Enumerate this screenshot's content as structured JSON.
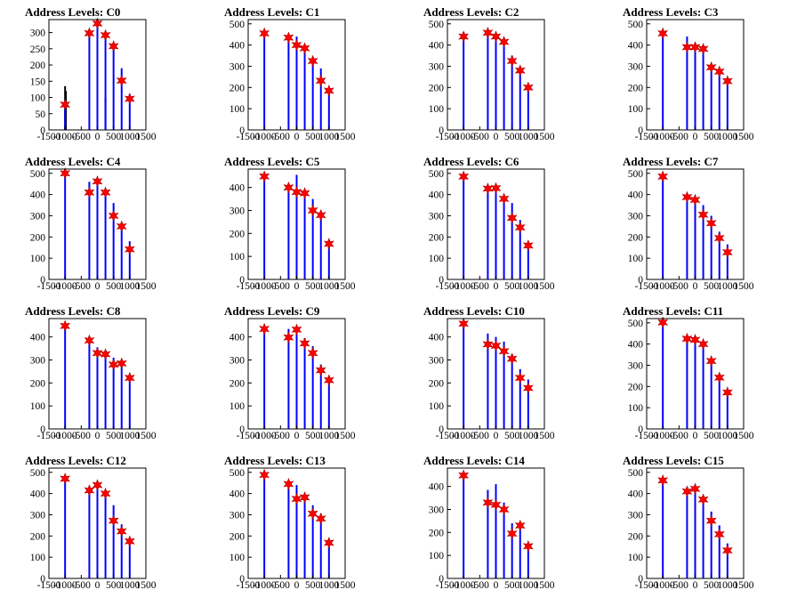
{
  "figure": {
    "x_ticks": [
      "-1500",
      "-1000",
      "-500",
      "0",
      "500",
      "1000",
      "1500"
    ],
    "x_tick_values": [
      -1500,
      -1000,
      -500,
      0,
      500,
      1000,
      1500
    ],
    "colors": {
      "bar": "#0000ff",
      "tall_bar": "#000000",
      "marker_fill": "#ff0000",
      "marker_stroke": "#aa0000",
      "frame": "#000000"
    }
  },
  "chart_data": [
    {
      "title": "Address Levels: C0",
      "type": "bar",
      "xlim": [
        -1500,
        1500
      ],
      "ylim": [
        0,
        340
      ],
      "y_ticks": [
        0,
        50,
        100,
        150,
        200,
        250,
        300
      ],
      "bars": [
        {
          "x": -1000,
          "y": 135,
          "dark": true
        },
        {
          "x": -975,
          "y": 120,
          "dark": true
        },
        {
          "x": -1000,
          "y": 75
        },
        {
          "x": -250,
          "y": 300
        },
        {
          "x": 0,
          "y": 325
        },
        {
          "x": 250,
          "y": 295
        },
        {
          "x": 250,
          "y": 100
        },
        {
          "x": 500,
          "y": 258
        },
        {
          "x": 750,
          "y": 190
        },
        {
          "x": 1000,
          "y": 110
        }
      ],
      "markers": [
        {
          "x": -1000,
          "y": 78
        },
        {
          "x": -250,
          "y": 298
        },
        {
          "x": 0,
          "y": 328
        },
        {
          "x": 250,
          "y": 292
        },
        {
          "x": 500,
          "y": 258
        },
        {
          "x": 750,
          "y": 152
        },
        {
          "x": 1000,
          "y": 96
        }
      ]
    },
    {
      "title": "Address Levels: C1",
      "type": "bar",
      "xlim": [
        -1500,
        1500
      ],
      "ylim": [
        0,
        520
      ],
      "y_ticks": [
        0,
        100,
        200,
        300,
        400,
        500
      ],
      "bars": [
        {
          "x": -1000,
          "y": 465
        },
        {
          "x": -250,
          "y": 440
        },
        {
          "x": 0,
          "y": 440
        },
        {
          "x": 250,
          "y": 400
        },
        {
          "x": 500,
          "y": 340
        },
        {
          "x": 750,
          "y": 290
        },
        {
          "x": 1000,
          "y": 200
        }
      ],
      "markers": [
        {
          "x": -1000,
          "y": 455
        },
        {
          "x": -250,
          "y": 435
        },
        {
          "x": 0,
          "y": 400
        },
        {
          "x": 250,
          "y": 385
        },
        {
          "x": 500,
          "y": 325
        },
        {
          "x": 750,
          "y": 232
        },
        {
          "x": 1000,
          "y": 185
        }
      ]
    },
    {
      "title": "Address Levels: C2",
      "type": "bar",
      "xlim": [
        -1500,
        1500
      ],
      "ylim": [
        0,
        520
      ],
      "y_ticks": [
        0,
        100,
        200,
        300,
        400,
        500
      ],
      "bars": [
        {
          "x": -1000,
          "y": 460
        },
        {
          "x": -250,
          "y": 460
        },
        {
          "x": 0,
          "y": 450
        },
        {
          "x": 250,
          "y": 420
        },
        {
          "x": 500,
          "y": 350
        },
        {
          "x": 750,
          "y": 300
        },
        {
          "x": 1000,
          "y": 200
        }
      ],
      "markers": [
        {
          "x": -1000,
          "y": 440
        },
        {
          "x": -250,
          "y": 458
        },
        {
          "x": 0,
          "y": 440
        },
        {
          "x": 250,
          "y": 415
        },
        {
          "x": 500,
          "y": 325
        },
        {
          "x": 750,
          "y": 280
        },
        {
          "x": 1000,
          "y": 200
        }
      ]
    },
    {
      "title": "Address Levels: C3",
      "type": "bar",
      "xlim": [
        -1500,
        1500
      ],
      "ylim": [
        0,
        520
      ],
      "y_ticks": [
        0,
        100,
        200,
        300,
        400,
        500
      ],
      "bars": [
        {
          "x": -1000,
          "y": 465
        },
        {
          "x": -250,
          "y": 440
        },
        {
          "x": 0,
          "y": 400
        },
        {
          "x": 250,
          "y": 390
        },
        {
          "x": 500,
          "y": 310
        },
        {
          "x": 750,
          "y": 290
        },
        {
          "x": 1000,
          "y": 240
        }
      ],
      "markers": [
        {
          "x": -1000,
          "y": 455
        },
        {
          "x": -250,
          "y": 390
        },
        {
          "x": 0,
          "y": 390
        },
        {
          "x": 250,
          "y": 382
        },
        {
          "x": 500,
          "y": 295
        },
        {
          "x": 750,
          "y": 275
        },
        {
          "x": 1000,
          "y": 230
        }
      ]
    },
    {
      "title": "Address Levels: C4",
      "type": "bar",
      "xlim": [
        -1500,
        1500
      ],
      "ylim": [
        0,
        520
      ],
      "y_ticks": [
        0,
        100,
        200,
        300,
        400,
        500
      ],
      "bars": [
        {
          "x": -1000,
          "y": 500
        },
        {
          "x": -250,
          "y": 460
        },
        {
          "x": 0,
          "y": 470
        },
        {
          "x": 250,
          "y": 420
        },
        {
          "x": 500,
          "y": 360
        },
        {
          "x": 750,
          "y": 260
        },
        {
          "x": 1000,
          "y": 180
        }
      ],
      "markers": [
        {
          "x": -1000,
          "y": 500
        },
        {
          "x": -250,
          "y": 410
        },
        {
          "x": 0,
          "y": 462
        },
        {
          "x": 250,
          "y": 410
        },
        {
          "x": 500,
          "y": 300
        },
        {
          "x": 750,
          "y": 250
        },
        {
          "x": 1000,
          "y": 142
        }
      ]
    },
    {
      "title": "Address Levels: C5",
      "type": "bar",
      "xlim": [
        -1500,
        1500
      ],
      "ylim": [
        0,
        480
      ],
      "y_ticks": [
        0,
        100,
        200,
        300,
        400
      ],
      "bars": [
        {
          "x": -1000,
          "y": 455
        },
        {
          "x": -250,
          "y": 400
        },
        {
          "x": 0,
          "y": 455
        },
        {
          "x": 250,
          "y": 375
        },
        {
          "x": 500,
          "y": 350
        },
        {
          "x": 750,
          "y": 295
        },
        {
          "x": 1000,
          "y": 165
        }
      ],
      "markers": [
        {
          "x": -1000,
          "y": 448
        },
        {
          "x": -250,
          "y": 400
        },
        {
          "x": 0,
          "y": 380
        },
        {
          "x": 250,
          "y": 375
        },
        {
          "x": 500,
          "y": 300
        },
        {
          "x": 750,
          "y": 280
        },
        {
          "x": 1000,
          "y": 155
        }
      ]
    },
    {
      "title": "Address Levels: C6",
      "type": "bar",
      "xlim": [
        -1500,
        1500
      ],
      "ylim": [
        0,
        520
      ],
      "y_ticks": [
        0,
        100,
        200,
        300,
        400,
        500
      ],
      "bars": [
        {
          "x": -1000,
          "y": 490
        },
        {
          "x": -250,
          "y": 445
        },
        {
          "x": 0,
          "y": 445
        },
        {
          "x": 250,
          "y": 400
        },
        {
          "x": 500,
          "y": 360
        },
        {
          "x": 750,
          "y": 280
        },
        {
          "x": 1000,
          "y": 175
        }
      ],
      "markers": [
        {
          "x": -1000,
          "y": 485
        },
        {
          "x": -250,
          "y": 428
        },
        {
          "x": 0,
          "y": 430
        },
        {
          "x": 250,
          "y": 380
        },
        {
          "x": 500,
          "y": 290
        },
        {
          "x": 750,
          "y": 245
        },
        {
          "x": 1000,
          "y": 160
        }
      ]
    },
    {
      "title": "Address Levels: C7",
      "type": "bar",
      "xlim": [
        -1500,
        1500
      ],
      "ylim": [
        0,
        520
      ],
      "y_ticks": [
        0,
        100,
        200,
        300,
        400,
        500
      ],
      "bars": [
        {
          "x": -1000,
          "y": 490
        },
        {
          "x": -250,
          "y": 400
        },
        {
          "x": 0,
          "y": 395
        },
        {
          "x": 250,
          "y": 350
        },
        {
          "x": 500,
          "y": 300
        },
        {
          "x": 750,
          "y": 225
        },
        {
          "x": 1000,
          "y": 165
        }
      ],
      "markers": [
        {
          "x": -1000,
          "y": 485
        },
        {
          "x": -250,
          "y": 388
        },
        {
          "x": 0,
          "y": 375
        },
        {
          "x": 250,
          "y": 305
        },
        {
          "x": 500,
          "y": 265
        },
        {
          "x": 750,
          "y": 195
        },
        {
          "x": 1000,
          "y": 128
        }
      ]
    },
    {
      "title": "Address Levels: C8",
      "type": "bar",
      "xlim": [
        -1500,
        1500
      ],
      "ylim": [
        0,
        480
      ],
      "y_ticks": [
        0,
        100,
        200,
        300,
        400
      ],
      "bars": [
        {
          "x": -1000,
          "y": 450
        },
        {
          "x": -250,
          "y": 390
        },
        {
          "x": 0,
          "y": 355
        },
        {
          "x": 250,
          "y": 335
        },
        {
          "x": 500,
          "y": 310
        },
        {
          "x": 750,
          "y": 300
        },
        {
          "x": 1000,
          "y": 230
        }
      ],
      "markers": [
        {
          "x": -1000,
          "y": 448
        },
        {
          "x": -250,
          "y": 385
        },
        {
          "x": 0,
          "y": 330
        },
        {
          "x": 250,
          "y": 325
        },
        {
          "x": 500,
          "y": 280
        },
        {
          "x": 750,
          "y": 285
        },
        {
          "x": 1000,
          "y": 222
        }
      ]
    },
    {
      "title": "Address Levels: C9",
      "type": "bar",
      "xlim": [
        -1500,
        1500
      ],
      "ylim": [
        0,
        480
      ],
      "y_ticks": [
        0,
        100,
        200,
        300,
        400
      ],
      "bars": [
        {
          "x": -1000,
          "y": 440
        },
        {
          "x": -250,
          "y": 435
        },
        {
          "x": 0,
          "y": 440
        },
        {
          "x": 250,
          "y": 395
        },
        {
          "x": 500,
          "y": 360
        },
        {
          "x": 750,
          "y": 280
        },
        {
          "x": 1000,
          "y": 230
        }
      ],
      "markers": [
        {
          "x": -1000,
          "y": 435
        },
        {
          "x": -250,
          "y": 398
        },
        {
          "x": 0,
          "y": 432
        },
        {
          "x": 250,
          "y": 372
        },
        {
          "x": 500,
          "y": 330
        },
        {
          "x": 750,
          "y": 255
        },
        {
          "x": 1000,
          "y": 212
        }
      ]
    },
    {
      "title": "Address Levels: C10",
      "type": "bar",
      "xlim": [
        -1500,
        1500
      ],
      "ylim": [
        0,
        480
      ],
      "y_ticks": [
        0,
        100,
        200,
        300,
        400
      ],
      "bars": [
        {
          "x": -1000,
          "y": 460
        },
        {
          "x": -250,
          "y": 415
        },
        {
          "x": 0,
          "y": 400
        },
        {
          "x": 250,
          "y": 380
        },
        {
          "x": 500,
          "y": 325
        },
        {
          "x": 750,
          "y": 260
        },
        {
          "x": 1000,
          "y": 215
        }
      ],
      "markers": [
        {
          "x": -1000,
          "y": 458
        },
        {
          "x": -250,
          "y": 368
        },
        {
          "x": 0,
          "y": 362
        },
        {
          "x": 250,
          "y": 338
        },
        {
          "x": 500,
          "y": 305
        },
        {
          "x": 750,
          "y": 222
        },
        {
          "x": 1000,
          "y": 178
        }
      ]
    },
    {
      "title": "Address Levels: C11",
      "type": "bar",
      "xlim": [
        -1500,
        1500
      ],
      "ylim": [
        0,
        520
      ],
      "y_ticks": [
        0,
        100,
        200,
        300,
        400,
        500
      ],
      "bars": [
        {
          "x": -1000,
          "y": 505
        },
        {
          "x": -250,
          "y": 430
        },
        {
          "x": 0,
          "y": 430
        },
        {
          "x": 250,
          "y": 410
        },
        {
          "x": 500,
          "y": 335
        },
        {
          "x": 750,
          "y": 260
        },
        {
          "x": 1000,
          "y": 185
        }
      ],
      "markers": [
        {
          "x": -1000,
          "y": 502
        },
        {
          "x": -250,
          "y": 425
        },
        {
          "x": 0,
          "y": 420
        },
        {
          "x": 250,
          "y": 400
        },
        {
          "x": 500,
          "y": 320
        },
        {
          "x": 750,
          "y": 242
        },
        {
          "x": 1000,
          "y": 172
        }
      ]
    },
    {
      "title": "Address Levels: C12",
      "type": "bar",
      "xlim": [
        -1500,
        1500
      ],
      "ylim": [
        0,
        520
      ],
      "y_ticks": [
        0,
        100,
        200,
        300,
        400,
        500
      ],
      "bars": [
        {
          "x": -1000,
          "y": 475
        },
        {
          "x": -250,
          "y": 425
        },
        {
          "x": 0,
          "y": 440
        },
        {
          "x": 250,
          "y": 400
        },
        {
          "x": 500,
          "y": 345
        },
        {
          "x": 750,
          "y": 255
        },
        {
          "x": 1000,
          "y": 190
        }
      ],
      "markers": [
        {
          "x": -1000,
          "y": 470
        },
        {
          "x": -250,
          "y": 415
        },
        {
          "x": 0,
          "y": 440
        },
        {
          "x": 250,
          "y": 400
        },
        {
          "x": 500,
          "y": 272
        },
        {
          "x": 750,
          "y": 222
        },
        {
          "x": 1000,
          "y": 175
        }
      ]
    },
    {
      "title": "Address Levels: C13",
      "type": "bar",
      "xlim": [
        -1500,
        1500
      ],
      "ylim": [
        0,
        520
      ],
      "y_ticks": [
        0,
        100,
        200,
        300,
        400,
        500
      ],
      "bars": [
        {
          "x": -1000,
          "y": 495
        },
        {
          "x": -250,
          "y": 445
        },
        {
          "x": 0,
          "y": 440
        },
        {
          "x": 250,
          "y": 395
        },
        {
          "x": 500,
          "y": 345
        },
        {
          "x": 750,
          "y": 305
        },
        {
          "x": 1000,
          "y": 185
        }
      ],
      "markers": [
        {
          "x": -1000,
          "y": 488
        },
        {
          "x": -250,
          "y": 445
        },
        {
          "x": 0,
          "y": 375
        },
        {
          "x": 250,
          "y": 382
        },
        {
          "x": 500,
          "y": 305
        },
        {
          "x": 750,
          "y": 282
        },
        {
          "x": 1000,
          "y": 168
        }
      ]
    },
    {
      "title": "Address Levels: C14",
      "type": "bar",
      "xlim": [
        -1500,
        1500
      ],
      "ylim": [
        0,
        480
      ],
      "y_ticks": [
        0,
        100,
        200,
        300,
        400
      ],
      "bars": [
        {
          "x": -1000,
          "y": 450
        },
        {
          "x": -250,
          "y": 385
        },
        {
          "x": 0,
          "y": 410
        },
        {
          "x": 250,
          "y": 330
        },
        {
          "x": 500,
          "y": 240
        },
        {
          "x": 750,
          "y": 230
        },
        {
          "x": 1000,
          "y": 150
        }
      ],
      "markers": [
        {
          "x": -1000,
          "y": 448
        },
        {
          "x": -250,
          "y": 330
        },
        {
          "x": 0,
          "y": 320
        },
        {
          "x": 250,
          "y": 300
        },
        {
          "x": 500,
          "y": 195
        },
        {
          "x": 750,
          "y": 230
        },
        {
          "x": 1000,
          "y": 140
        }
      ]
    },
    {
      "title": "Address Levels: C15",
      "type": "bar",
      "xlim": [
        -1500,
        1500
      ],
      "ylim": [
        0,
        520
      ],
      "y_ticks": [
        0,
        100,
        200,
        300,
        400,
        500
      ],
      "bars": [
        {
          "x": -1000,
          "y": 470
        },
        {
          "x": -250,
          "y": 430
        },
        {
          "x": 0,
          "y": 430
        },
        {
          "x": 250,
          "y": 385
        },
        {
          "x": 500,
          "y": 315
        },
        {
          "x": 750,
          "y": 250
        },
        {
          "x": 1000,
          "y": 165
        }
      ],
      "markers": [
        {
          "x": -1000,
          "y": 462
        },
        {
          "x": -250,
          "y": 410
        },
        {
          "x": 0,
          "y": 422
        },
        {
          "x": 250,
          "y": 372
        },
        {
          "x": 500,
          "y": 272
        },
        {
          "x": 750,
          "y": 208
        },
        {
          "x": 1000,
          "y": 132
        }
      ]
    }
  ]
}
